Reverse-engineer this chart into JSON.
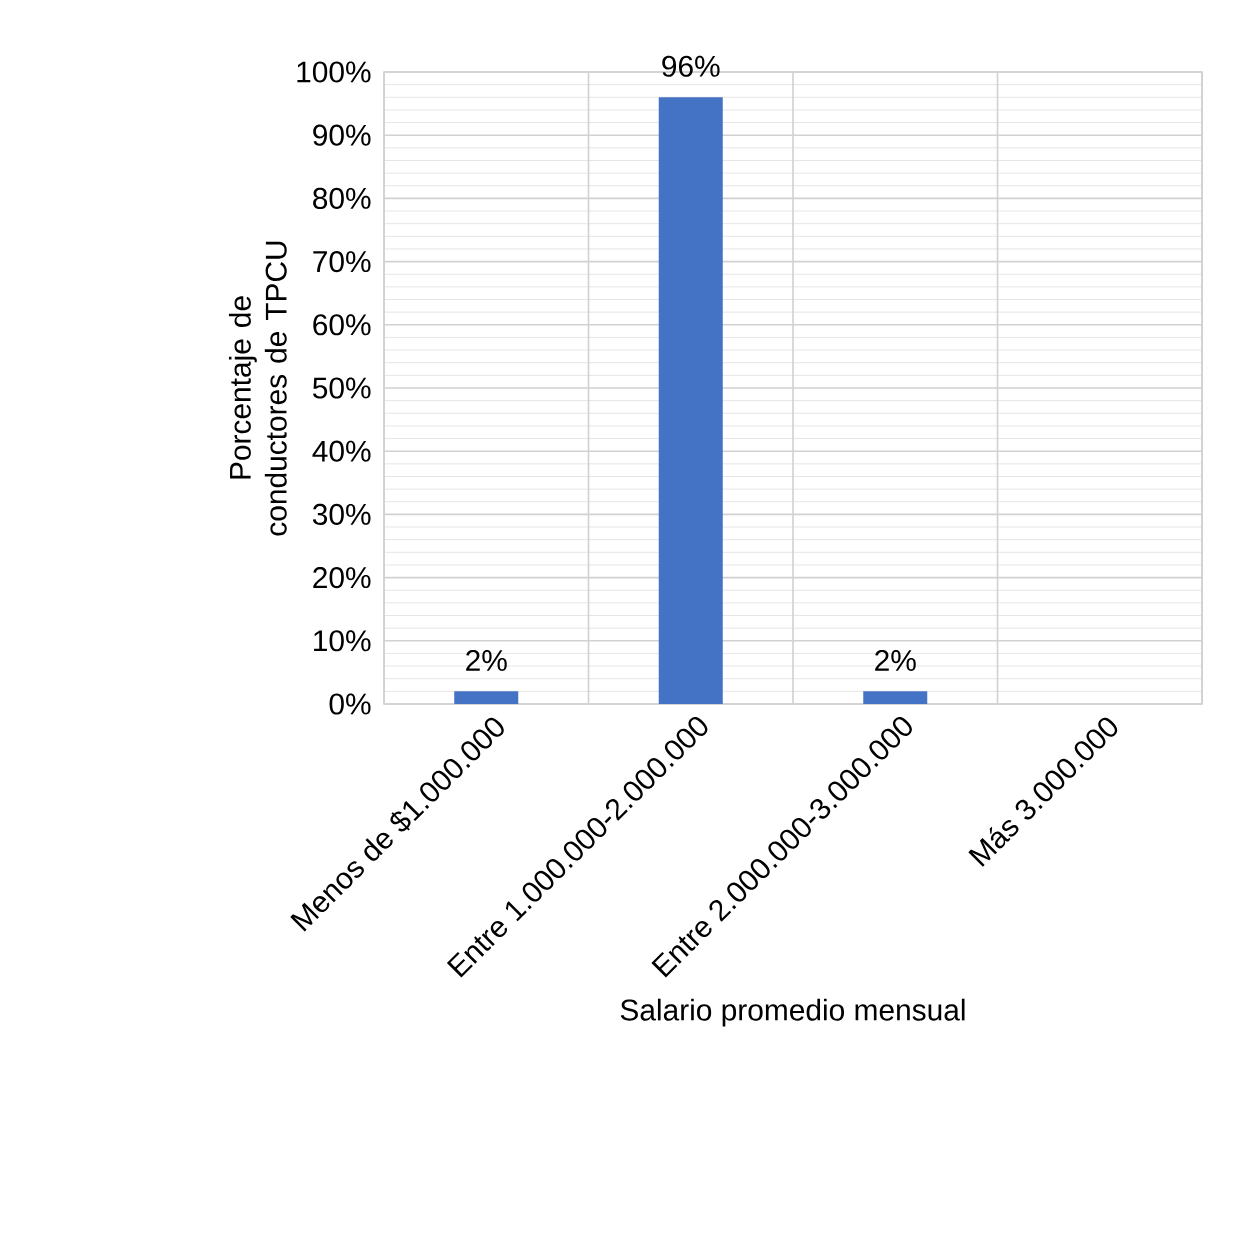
{
  "chart_data": {
    "type": "bar",
    "xlabel": "Salario promedio mensual",
    "ylabel": "Porcentaje de conductores de TPCU",
    "categories": [
      "Menos de $1.000.000",
      "Entre 1.000.000-2.000.000",
      "Entre 2.000.000-3.000.000",
      "Más 3.000.000"
    ],
    "values": [
      2,
      96,
      2,
      0
    ],
    "value_labels": [
      "2%",
      "96%",
      "2%",
      null
    ],
    "color": "#4472c4",
    "ylim": [
      0,
      100
    ],
    "yticks": [
      {
        "value": 0,
        "label": "0%"
      },
      {
        "value": 10,
        "label": "10%"
      },
      {
        "value": 20,
        "label": "20%"
      },
      {
        "value": 30,
        "label": "30%"
      },
      {
        "value": 40,
        "label": "40%"
      },
      {
        "value": 50,
        "label": "50%"
      },
      {
        "value": 60,
        "label": "60%"
      },
      {
        "value": 70,
        "label": "70%"
      },
      {
        "value": 80,
        "label": "80%"
      },
      {
        "value": 90,
        "label": "90%"
      },
      {
        "value": 100,
        "label": "100%"
      }
    ],
    "grid": true
  }
}
